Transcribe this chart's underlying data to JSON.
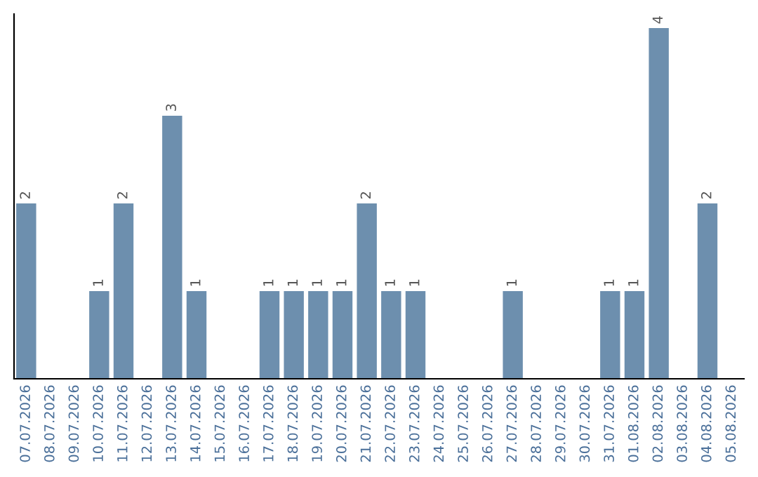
{
  "chart_data": {
    "type": "bar",
    "categories": [
      "07.07.2026",
      "08.07.2026",
      "09.07.2026",
      "10.07.2026",
      "11.07.2026",
      "12.07.2026",
      "13.07.2026",
      "14.07.2026",
      "15.07.2026",
      "16.07.2026",
      "17.07.2026",
      "18.07.2026",
      "19.07.2026",
      "20.07.2026",
      "21.07.2026",
      "22.07.2026",
      "23.07.2026",
      "24.07.2026",
      "25.07.2026",
      "26.07.2026",
      "27.07.2026",
      "28.07.2026",
      "29.07.2026",
      "30.07.2026",
      "31.07.2026",
      "01.08.2026",
      "02.08.2026",
      "03.08.2026",
      "04.08.2026",
      "05.08.2026"
    ],
    "values": [
      2,
      0,
      0,
      1,
      2,
      0,
      3,
      1,
      0,
      0,
      1,
      1,
      1,
      1,
      2,
      1,
      1,
      0,
      0,
      0,
      1,
      0,
      0,
      0,
      1,
      1,
      4,
      0,
      2,
      0
    ],
    "value_labels": [
      "2",
      null,
      null,
      "1",
      "2",
      null,
      "3",
      "1",
      null,
      null,
      "1",
      "1",
      "1",
      "1",
      "2",
      "1",
      "1",
      null,
      null,
      null,
      "1",
      null,
      null,
      null,
      "1",
      "1",
      "4",
      null,
      "2",
      null
    ],
    "color": "#6d8fae",
    "tick_labels": "x",
    "grid": false
  }
}
